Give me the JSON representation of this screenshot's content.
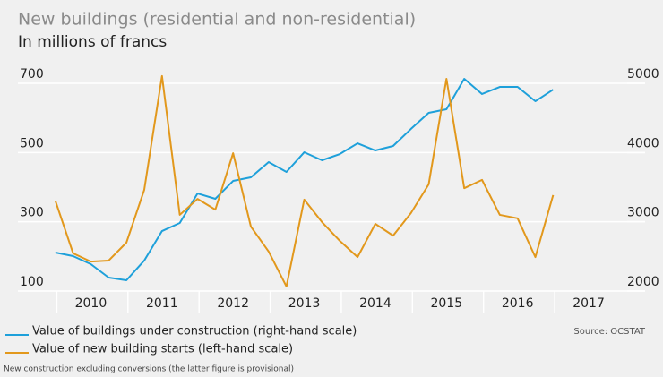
{
  "chart_data": {
    "type": "line",
    "title": "New buildings (residential and non-residential)",
    "subtitle": "In millions of francs",
    "source": "Source: OCSTAT",
    "note": "New construction excluding conversions (the latter figure is provisional)",
    "x": [
      2010,
      2010.25,
      2010.5,
      2010.75,
      2011,
      2011.25,
      2011.5,
      2011.75,
      2012,
      2012.25,
      2012.5,
      2012.75,
      2013,
      2013.25,
      2013.5,
      2013.75,
      2014,
      2014.25,
      2014.5,
      2014.75,
      2015,
      2015.25,
      2015.5,
      2015.75,
      2016,
      2016.25,
      2016.5,
      2016.75,
      2017
    ],
    "xlim": [
      2009.6,
      2017.6
    ],
    "xticks": [
      {
        "value": 2010.5,
        "label": "2010"
      },
      {
        "value": 2011.5,
        "label": "2011"
      },
      {
        "value": 2012.5,
        "label": "2012"
      },
      {
        "value": 2013.5,
        "label": "2013"
      },
      {
        "value": 2014.5,
        "label": "2014"
      },
      {
        "value": 2015.5,
        "label": "2015"
      },
      {
        "value": 2016.5,
        "label": "2016"
      },
      {
        "value": 2017.5,
        "label": "2017"
      }
    ],
    "ylim": [
      100,
      700
    ],
    "yticks": [
      100,
      300,
      500,
      700
    ],
    "y2lim": [
      2000,
      5000
    ],
    "y2ticks": [
      2000,
      3000,
      4000,
      5000
    ],
    "grid": true,
    "series": [
      {
        "name": "Value of buildings under construction (right-hand scale)",
        "color": "#1ea0da",
        "axis": "y2",
        "values": [
          2556,
          2504,
          2388,
          2194,
          2155,
          2440,
          2866,
          2983,
          3409,
          3332,
          3590,
          3642,
          3862,
          3720,
          4004,
          3888,
          3978,
          4133,
          4030,
          4095,
          4340,
          4573,
          4625,
          5064,
          4845,
          4948,
          4948,
          4741,
          4909
        ]
      },
      {
        "name": "Value of new building starts (left-hand scale)",
        "color": "#e2981c",
        "values": [
          361,
          209,
          185,
          188,
          240,
          392,
          721,
          320,
          366,
          335,
          498,
          286,
          214,
          113,
          364,
          299,
          245,
          198,
          294,
          260,
          325,
          408,
          713,
          397,
          421,
          320,
          310,
          198,
          377
        ]
      }
    ]
  }
}
